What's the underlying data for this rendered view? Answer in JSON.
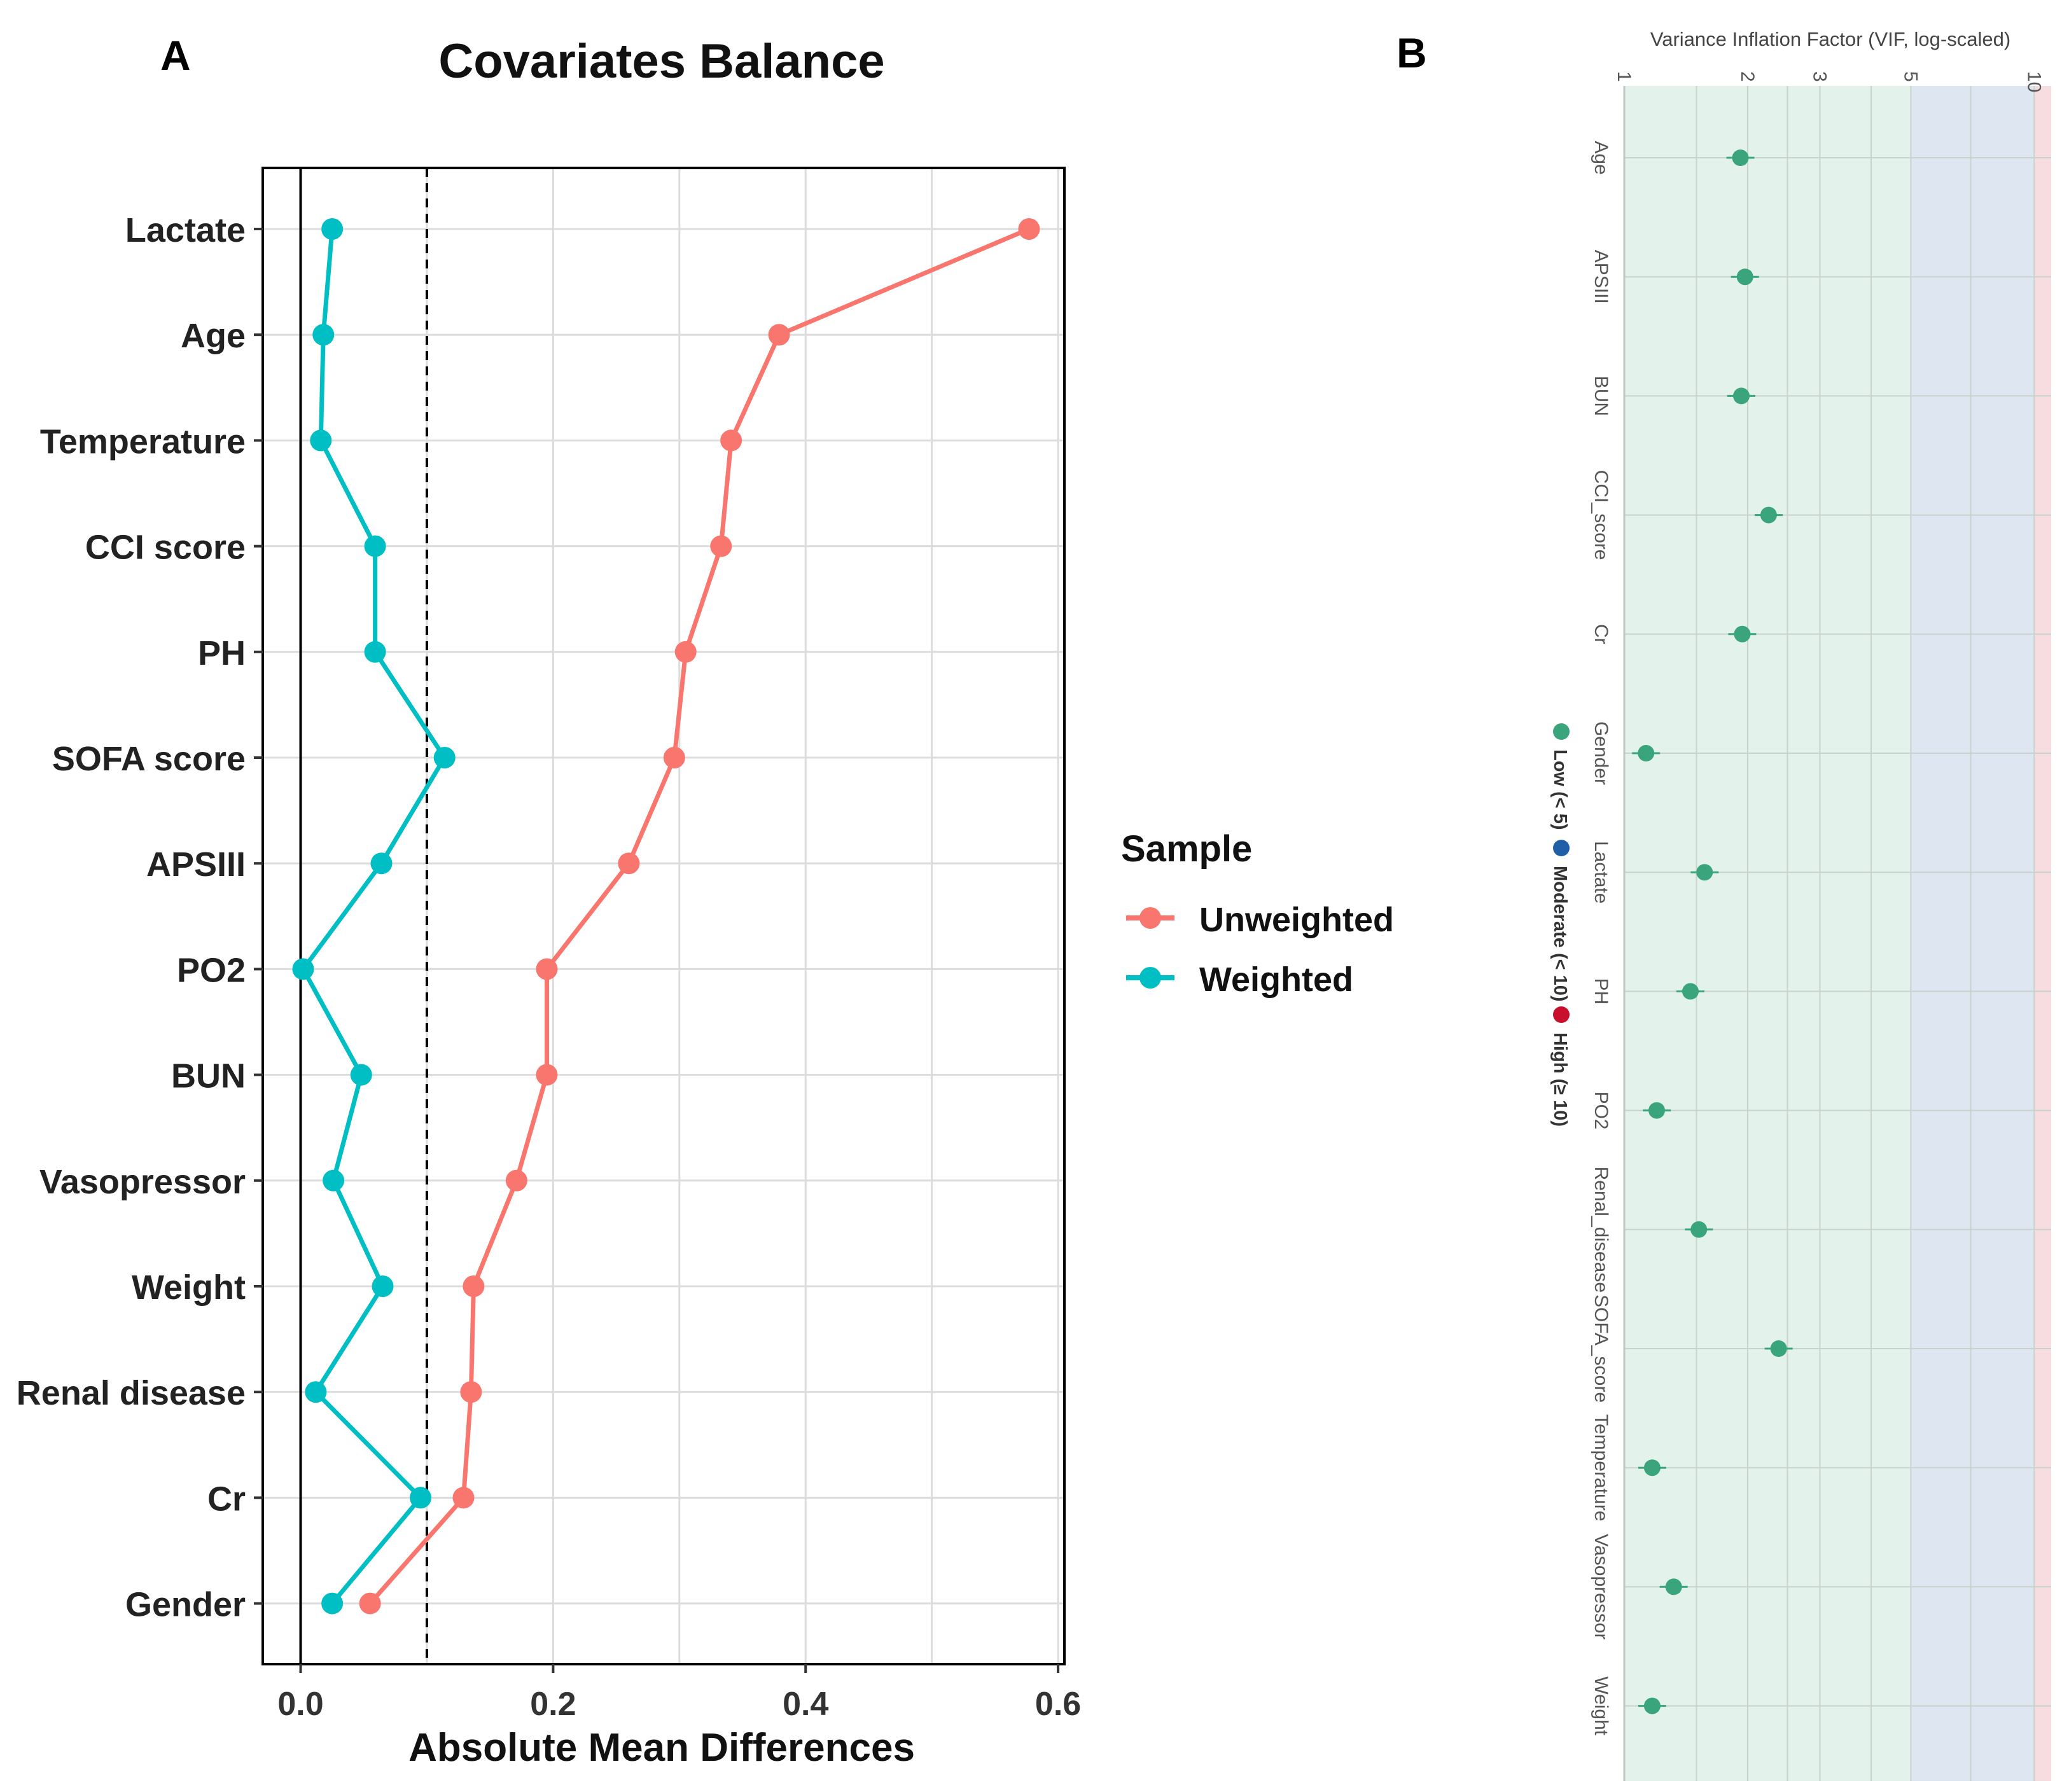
{
  "panel_labels": {
    "a": "A",
    "b": "B"
  },
  "colors": {
    "unweighted": "#F8766D",
    "weighted": "#00BFC4",
    "vif_point": "#3AA57C",
    "zone_low": "#E3F2EA",
    "zone_moderate": "#DDE6F1",
    "zone_high": "#F7DDE0",
    "vif_moderate": "#1F5FA8",
    "vif_high": "#C8102E"
  },
  "chart_data": [
    {
      "type": "line",
      "title": "Covariates Balance",
      "xlabel": "Absolute Mean Differences",
      "ylabel": "",
      "xlim": [
        -0.03,
        0.605
      ],
      "xticks": [
        0.0,
        0.2,
        0.4,
        0.6
      ],
      "xtick_labels": [
        "0.0",
        "0.2",
        "0.4",
        "0.6"
      ],
      "threshold": 0.1,
      "zero_line": 0.0,
      "grid": true,
      "categories": [
        "Lactate",
        "Age",
        "Temperature",
        "CCI  score",
        "PH",
        "SOFA  score",
        "APSIII",
        "PO2",
        "BUN",
        "Vasopressor",
        "Weight",
        "Renal  disease",
        "Cr",
        "Gender"
      ],
      "legend": {
        "title": "Sample",
        "position": "right"
      },
      "series": [
        {
          "name": "Unweighted",
          "values": [
            0.577,
            0.379,
            0.341,
            0.333,
            0.305,
            0.296,
            0.26,
            0.195,
            0.195,
            0.171,
            0.137,
            0.135,
            0.129,
            0.055
          ]
        },
        {
          "name": "Weighted",
          "values": [
            0.025,
            0.018,
            0.016,
            0.059,
            0.059,
            0.114,
            0.064,
            0.002,
            0.048,
            0.026,
            0.065,
            0.012,
            0.095,
            0.025
          ]
        }
      ]
    },
    {
      "type": "scatter",
      "title": "Variance Inflation Factor (VIF, log-scaled)",
      "xlim": [
        1,
        11
      ],
      "scale": "log",
      "ticks": [
        1,
        2,
        3,
        5,
        10
      ],
      "tick_labels": [
        "1",
        "2",
        "3",
        "5",
        "10"
      ],
      "zones": [
        {
          "name": "Low (< 5)",
          "from": 1,
          "to": 5
        },
        {
          "name": "Moderate (< 10)",
          "from": 5,
          "to": 10
        },
        {
          "name": "High (≥ 10)",
          "from": 10,
          "to": 11
        }
      ],
      "legend": [
        "Low (< 5)",
        "Moderate (< 10)",
        "High (≥ 10)"
      ],
      "categories": [
        "Age",
        "APSIII",
        "BUN",
        "CCI_score",
        "Cr",
        "Gender",
        "Lactate",
        "PH",
        "PO2",
        "Renal_disease",
        "SOFA_score",
        "Temperature",
        "Vasopressor",
        "Weight"
      ],
      "values": [
        1.92,
        1.97,
        1.93,
        2.25,
        1.94,
        1.13,
        1.57,
        1.45,
        1.2,
        1.52,
        2.38,
        1.17,
        1.32,
        1.17
      ]
    }
  ]
}
